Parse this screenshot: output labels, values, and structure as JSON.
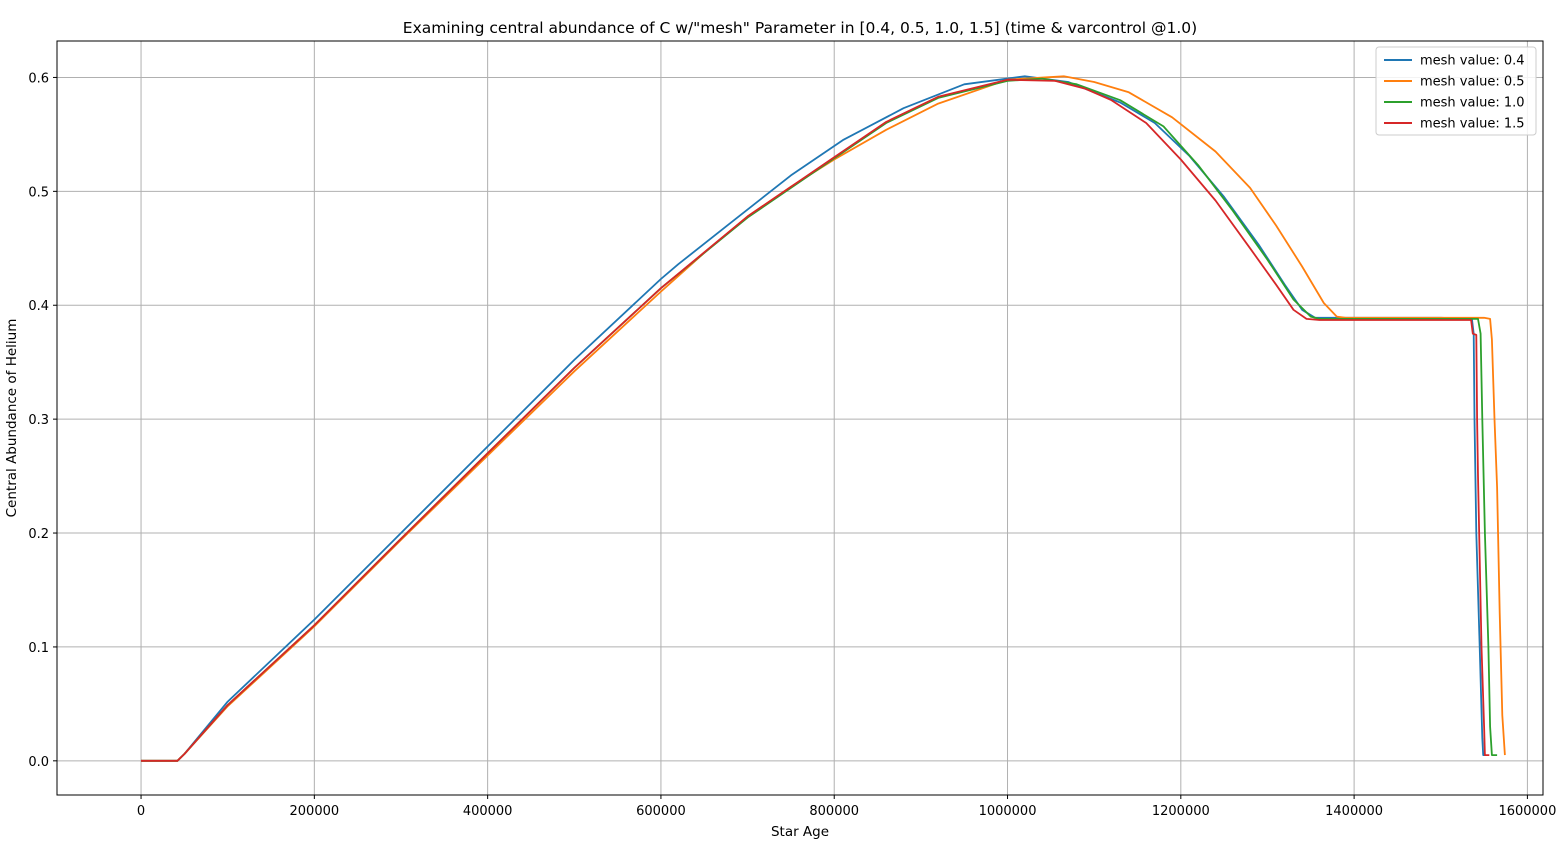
{
  "chart_data": {
    "type": "line",
    "title": "Examining central abundance of C w/\"mesh\" Parameter in [0.4, 0.5, 1.0, 1.5] (time & varcontrol @1.0)",
    "xlabel": "Star Age",
    "ylabel": "Central Abundance of Helium",
    "xlim": [
      -97000,
      1618000
    ],
    "ylim": [
      -0.03,
      0.632
    ],
    "xticks": [
      0,
      200000,
      400000,
      600000,
      800000,
      1000000,
      1200000,
      1400000,
      1600000
    ],
    "xtick_labels": [
      "0",
      "200000",
      "400000",
      "600000",
      "800000",
      "1000000",
      "1200000",
      "1400000",
      "1600000"
    ],
    "yticks": [
      0.0,
      0.1,
      0.2,
      0.3,
      0.4,
      0.5,
      0.6
    ],
    "ytick_labels": [
      "0.0",
      "0.1",
      "0.2",
      "0.3",
      "0.4",
      "0.5",
      "0.6"
    ],
    "grid": true,
    "legend_position": "top-right",
    "series": [
      {
        "name": "mesh value: 0.4",
        "color": "#1f77b4",
        "points": [
          [
            0,
            0.0
          ],
          [
            30000,
            0.0
          ],
          [
            42000,
            0.0
          ],
          [
            50000,
            0.006
          ],
          [
            100000,
            0.052
          ],
          [
            200000,
            0.124
          ],
          [
            300000,
            0.2
          ],
          [
            400000,
            0.276
          ],
          [
            500000,
            0.352
          ],
          [
            600000,
            0.423
          ],
          [
            620000,
            0.436
          ],
          [
            680000,
            0.472
          ],
          [
            750000,
            0.514
          ],
          [
            810000,
            0.545
          ],
          [
            880000,
            0.573
          ],
          [
            950000,
            0.594
          ],
          [
            1020000,
            0.601
          ],
          [
            1070000,
            0.596
          ],
          [
            1130000,
            0.578
          ],
          [
            1170000,
            0.56
          ],
          [
            1210000,
            0.531
          ],
          [
            1250000,
            0.495
          ],
          [
            1290000,
            0.453
          ],
          [
            1320000,
            0.418
          ],
          [
            1340000,
            0.396
          ],
          [
            1355000,
            0.389
          ],
          [
            1400000,
            0.389
          ],
          [
            1500000,
            0.389
          ],
          [
            1536000,
            0.388
          ],
          [
            1538000,
            0.375
          ],
          [
            1539000,
            0.3
          ],
          [
            1541000,
            0.2
          ],
          [
            1545000,
            0.1
          ],
          [
            1548000,
            0.02
          ],
          [
            1549000,
            0.005
          ],
          [
            1552000,
            0.005
          ]
        ]
      },
      {
        "name": "mesh value: 0.5",
        "color": "#ff7f0e",
        "points": [
          [
            0,
            0.0
          ],
          [
            30000,
            0.0
          ],
          [
            42000,
            0.0
          ],
          [
            50000,
            0.006
          ],
          [
            100000,
            0.048
          ],
          [
            200000,
            0.118
          ],
          [
            300000,
            0.194
          ],
          [
            400000,
            0.268
          ],
          [
            500000,
            0.342
          ],
          [
            600000,
            0.412
          ],
          [
            650000,
            0.446
          ],
          [
            700000,
            0.478
          ],
          [
            750000,
            0.504
          ],
          [
            800000,
            0.528
          ],
          [
            860000,
            0.554
          ],
          [
            920000,
            0.577
          ],
          [
            1000000,
            0.598
          ],
          [
            1065000,
            0.601
          ],
          [
            1100000,
            0.596
          ],
          [
            1140000,
            0.587
          ],
          [
            1190000,
            0.565
          ],
          [
            1240000,
            0.535
          ],
          [
            1280000,
            0.503
          ],
          [
            1310000,
            0.47
          ],
          [
            1340000,
            0.434
          ],
          [
            1365000,
            0.402
          ],
          [
            1380000,
            0.39
          ],
          [
            1390000,
            0.389
          ],
          [
            1500000,
            0.389
          ],
          [
            1550000,
            0.389
          ],
          [
            1557000,
            0.388
          ],
          [
            1559000,
            0.37
          ],
          [
            1562000,
            0.3
          ],
          [
            1565000,
            0.24
          ],
          [
            1568000,
            0.13
          ],
          [
            1571000,
            0.04
          ],
          [
            1574000,
            0.005
          ]
        ]
      },
      {
        "name": "mesh value: 1.0",
        "color": "#2ca02c",
        "points": [
          [
            0,
            0.0
          ],
          [
            30000,
            0.0
          ],
          [
            42000,
            0.0
          ],
          [
            50000,
            0.006
          ],
          [
            100000,
            0.049
          ],
          [
            200000,
            0.119
          ],
          [
            300000,
            0.195
          ],
          [
            400000,
            0.27
          ],
          [
            500000,
            0.345
          ],
          [
            600000,
            0.415
          ],
          [
            700000,
            0.477
          ],
          [
            800000,
            0.529
          ],
          [
            860000,
            0.56
          ],
          [
            920000,
            0.582
          ],
          [
            1000000,
            0.597
          ],
          [
            1040000,
            0.599
          ],
          [
            1080000,
            0.594
          ],
          [
            1130000,
            0.58
          ],
          [
            1180000,
            0.557
          ],
          [
            1220000,
            0.523
          ],
          [
            1260000,
            0.483
          ],
          [
            1300000,
            0.44
          ],
          [
            1330000,
            0.405
          ],
          [
            1350000,
            0.39
          ],
          [
            1360000,
            0.388
          ],
          [
            1500000,
            0.388
          ],
          [
            1543000,
            0.388
          ],
          [
            1546000,
            0.375
          ],
          [
            1548000,
            0.3
          ],
          [
            1551000,
            0.2
          ],
          [
            1555000,
            0.1
          ],
          [
            1557000,
            0.03
          ],
          [
            1559000,
            0.005
          ],
          [
            1565000,
            0.005
          ]
        ]
      },
      {
        "name": "mesh value: 1.5",
        "color": "#d62728",
        "points": [
          [
            0,
            0.0
          ],
          [
            30000,
            0.0
          ],
          [
            42000,
            0.0
          ],
          [
            50000,
            0.006
          ],
          [
            100000,
            0.049
          ],
          [
            200000,
            0.119
          ],
          [
            300000,
            0.195
          ],
          [
            400000,
            0.27
          ],
          [
            500000,
            0.345
          ],
          [
            600000,
            0.415
          ],
          [
            700000,
            0.478
          ],
          [
            800000,
            0.53
          ],
          [
            860000,
            0.561
          ],
          [
            920000,
            0.583
          ],
          [
            1000000,
            0.598
          ],
          [
            1055000,
            0.597
          ],
          [
            1090000,
            0.59
          ],
          [
            1120000,
            0.58
          ],
          [
            1160000,
            0.56
          ],
          [
            1200000,
            0.528
          ],
          [
            1240000,
            0.492
          ],
          [
            1280000,
            0.45
          ],
          [
            1310000,
            0.418
          ],
          [
            1330000,
            0.396
          ],
          [
            1345000,
            0.388
          ],
          [
            1360000,
            0.387
          ],
          [
            1500000,
            0.387
          ],
          [
            1535000,
            0.387
          ],
          [
            1537000,
            0.375
          ],
          [
            1541000,
            0.374
          ],
          [
            1542000,
            0.3
          ],
          [
            1543000,
            0.25
          ],
          [
            1547000,
            0.1
          ],
          [
            1550000,
            0.03
          ],
          [
            1551000,
            0.005
          ],
          [
            1556000,
            0.005
          ]
        ]
      }
    ]
  }
}
